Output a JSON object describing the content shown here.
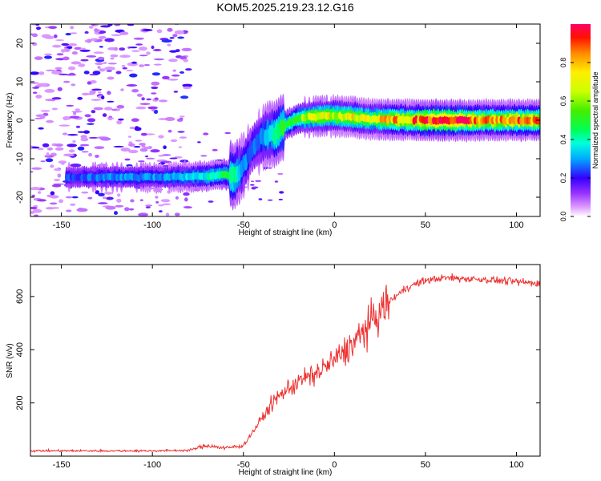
{
  "title": "KOM5.2025.219.23.12.G16",
  "chart_data": [
    {
      "type": "heatmap",
      "xlabel": "Height of straight line (km)",
      "ylabel": "Frequency (Hz)",
      "xlim": [
        -167,
        113
      ],
      "ylim": [
        -25,
        25
      ],
      "xticks": [
        "-150",
        "-100",
        "-50",
        "0",
        "50",
        "100"
      ],
      "yticks": [
        "-20",
        "-10",
        "0",
        "10",
        "20"
      ],
      "colorbar": {
        "label": "Normalized spectral amplitude",
        "range": [
          0,
          1
        ],
        "ticks": [
          "0.0",
          "0.2",
          "0.4",
          "0.6",
          "0.8"
        ]
      },
      "ridge": [
        {
          "x": -145,
          "freq": -14.8,
          "amp": 0.25
        },
        {
          "x": -120,
          "freq": -14.8,
          "amp": 0.3
        },
        {
          "x": -95,
          "freq": -14.8,
          "amp": 0.3
        },
        {
          "x": -80,
          "freq": -14.7,
          "amp": 0.35
        },
        {
          "x": -70,
          "freq": -14.5,
          "amp": 0.4
        },
        {
          "x": -60,
          "freq": -14.0,
          "amp": 0.45
        },
        {
          "x": -55,
          "freq": -14.5,
          "amp": 0.45
        },
        {
          "x": -50,
          "freq": -12.0,
          "amp": 0.3
        },
        {
          "x": -45,
          "freq": -7.0,
          "amp": 0.25
        },
        {
          "x": -40,
          "freq": -4.5,
          "amp": 0.3
        },
        {
          "x": -33,
          "freq": -3.5,
          "amp": 0.45
        },
        {
          "x": -28,
          "freq": -1.5,
          "amp": 0.5
        },
        {
          "x": -20,
          "freq": 0.5,
          "amp": 0.55
        },
        {
          "x": -10,
          "freq": 1.0,
          "amp": 0.75
        },
        {
          "x": 0,
          "freq": 1.2,
          "amp": 0.7
        },
        {
          "x": 10,
          "freq": 0.8,
          "amp": 0.75
        },
        {
          "x": 20,
          "freq": 0.3,
          "amp": 0.7
        },
        {
          "x": 30,
          "freq": 0.2,
          "amp": 0.85
        },
        {
          "x": 40,
          "freq": 0.0,
          "amp": 0.8
        },
        {
          "x": 50,
          "freq": 0.0,
          "amp": 1.0
        },
        {
          "x": 60,
          "freq": 0.0,
          "amp": 1.0
        },
        {
          "x": 70,
          "freq": 0.0,
          "amp": 1.0
        },
        {
          "x": 80,
          "freq": 0.0,
          "amp": 0.85
        },
        {
          "x": 90,
          "freq": 0.0,
          "amp": 0.85
        },
        {
          "x": 100,
          "freq": 0.0,
          "amp": 0.9
        },
        {
          "x": 113,
          "freq": 0.0,
          "amp": 0.9
        }
      ]
    },
    {
      "type": "line",
      "xlabel": "Height of straight line (km)",
      "ylabel": "SNR (v/v)",
      "xlim": [
        -167,
        113
      ],
      "ylim": [
        0,
        720
      ],
      "xticks": [
        "-150",
        "-100",
        "-50",
        "0",
        "50",
        "100"
      ],
      "yticks": [
        "200",
        "400",
        "600"
      ],
      "color": "#ee3030",
      "trend": [
        {
          "x": -167,
          "snr": 20
        },
        {
          "x": -100,
          "snr": 20
        },
        {
          "x": -80,
          "snr": 22
        },
        {
          "x": -70,
          "snr": 40
        },
        {
          "x": -60,
          "snr": 30
        },
        {
          "x": -50,
          "snr": 40
        },
        {
          "x": -45,
          "snr": 90
        },
        {
          "x": -40,
          "snr": 140
        },
        {
          "x": -35,
          "snr": 190
        },
        {
          "x": -30,
          "snr": 230
        },
        {
          "x": -20,
          "snr": 280
        },
        {
          "x": -10,
          "snr": 310
        },
        {
          "x": 0,
          "snr": 360
        },
        {
          "x": 10,
          "snr": 420
        },
        {
          "x": 20,
          "snr": 500
        },
        {
          "x": 30,
          "snr": 580
        },
        {
          "x": 40,
          "snr": 635
        },
        {
          "x": 50,
          "snr": 660
        },
        {
          "x": 60,
          "snr": 670
        },
        {
          "x": 80,
          "snr": 665
        },
        {
          "x": 100,
          "snr": 655
        },
        {
          "x": 113,
          "snr": 650
        }
      ]
    }
  ]
}
